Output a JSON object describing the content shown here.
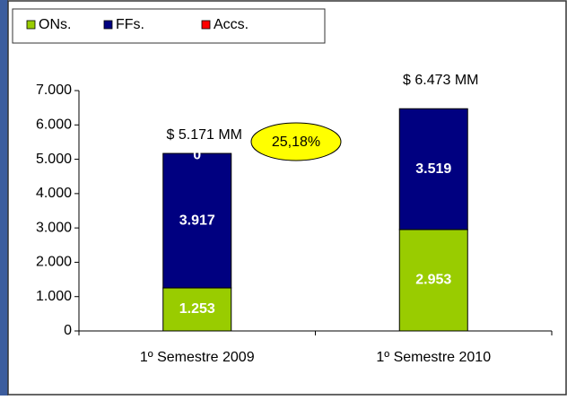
{
  "chart_data": {
    "type": "stacked_bar",
    "categories": [
      "1º Semestre 2009",
      "1º Semestre 2010"
    ],
    "series": [
      {
        "name": "ONs.",
        "color": "#99cc00",
        "values": [
          1253,
          2953
        ],
        "value_labels": [
          "1.253",
          "2.953"
        ]
      },
      {
        "name": "FFs.",
        "color": "#000080",
        "values": [
          3917,
          3519
        ],
        "value_labels": [
          "3.917",
          "3.519"
        ]
      },
      {
        "name": "Accs.",
        "color": "#ff0000",
        "values": [
          0,
          null
        ],
        "value_labels": [
          "0",
          null
        ]
      }
    ],
    "ylim": [
      0,
      7000
    ],
    "yticks": [
      {
        "value": 0,
        "label": "0"
      },
      {
        "value": 1000,
        "label": "1.000"
      },
      {
        "value": 2000,
        "label": "2.000"
      },
      {
        "value": 3000,
        "label": "3.000"
      },
      {
        "value": 4000,
        "label": "4.000"
      },
      {
        "value": 5000,
        "label": "5.000"
      },
      {
        "value": 6000,
        "label": "6.000"
      },
      {
        "value": 7000,
        "label": "7.000"
      }
    ],
    "annotations": [
      "$ 5.171 MM",
      "$ 6.473 MM",
      "25,18%"
    ],
    "legend": "top-left"
  }
}
